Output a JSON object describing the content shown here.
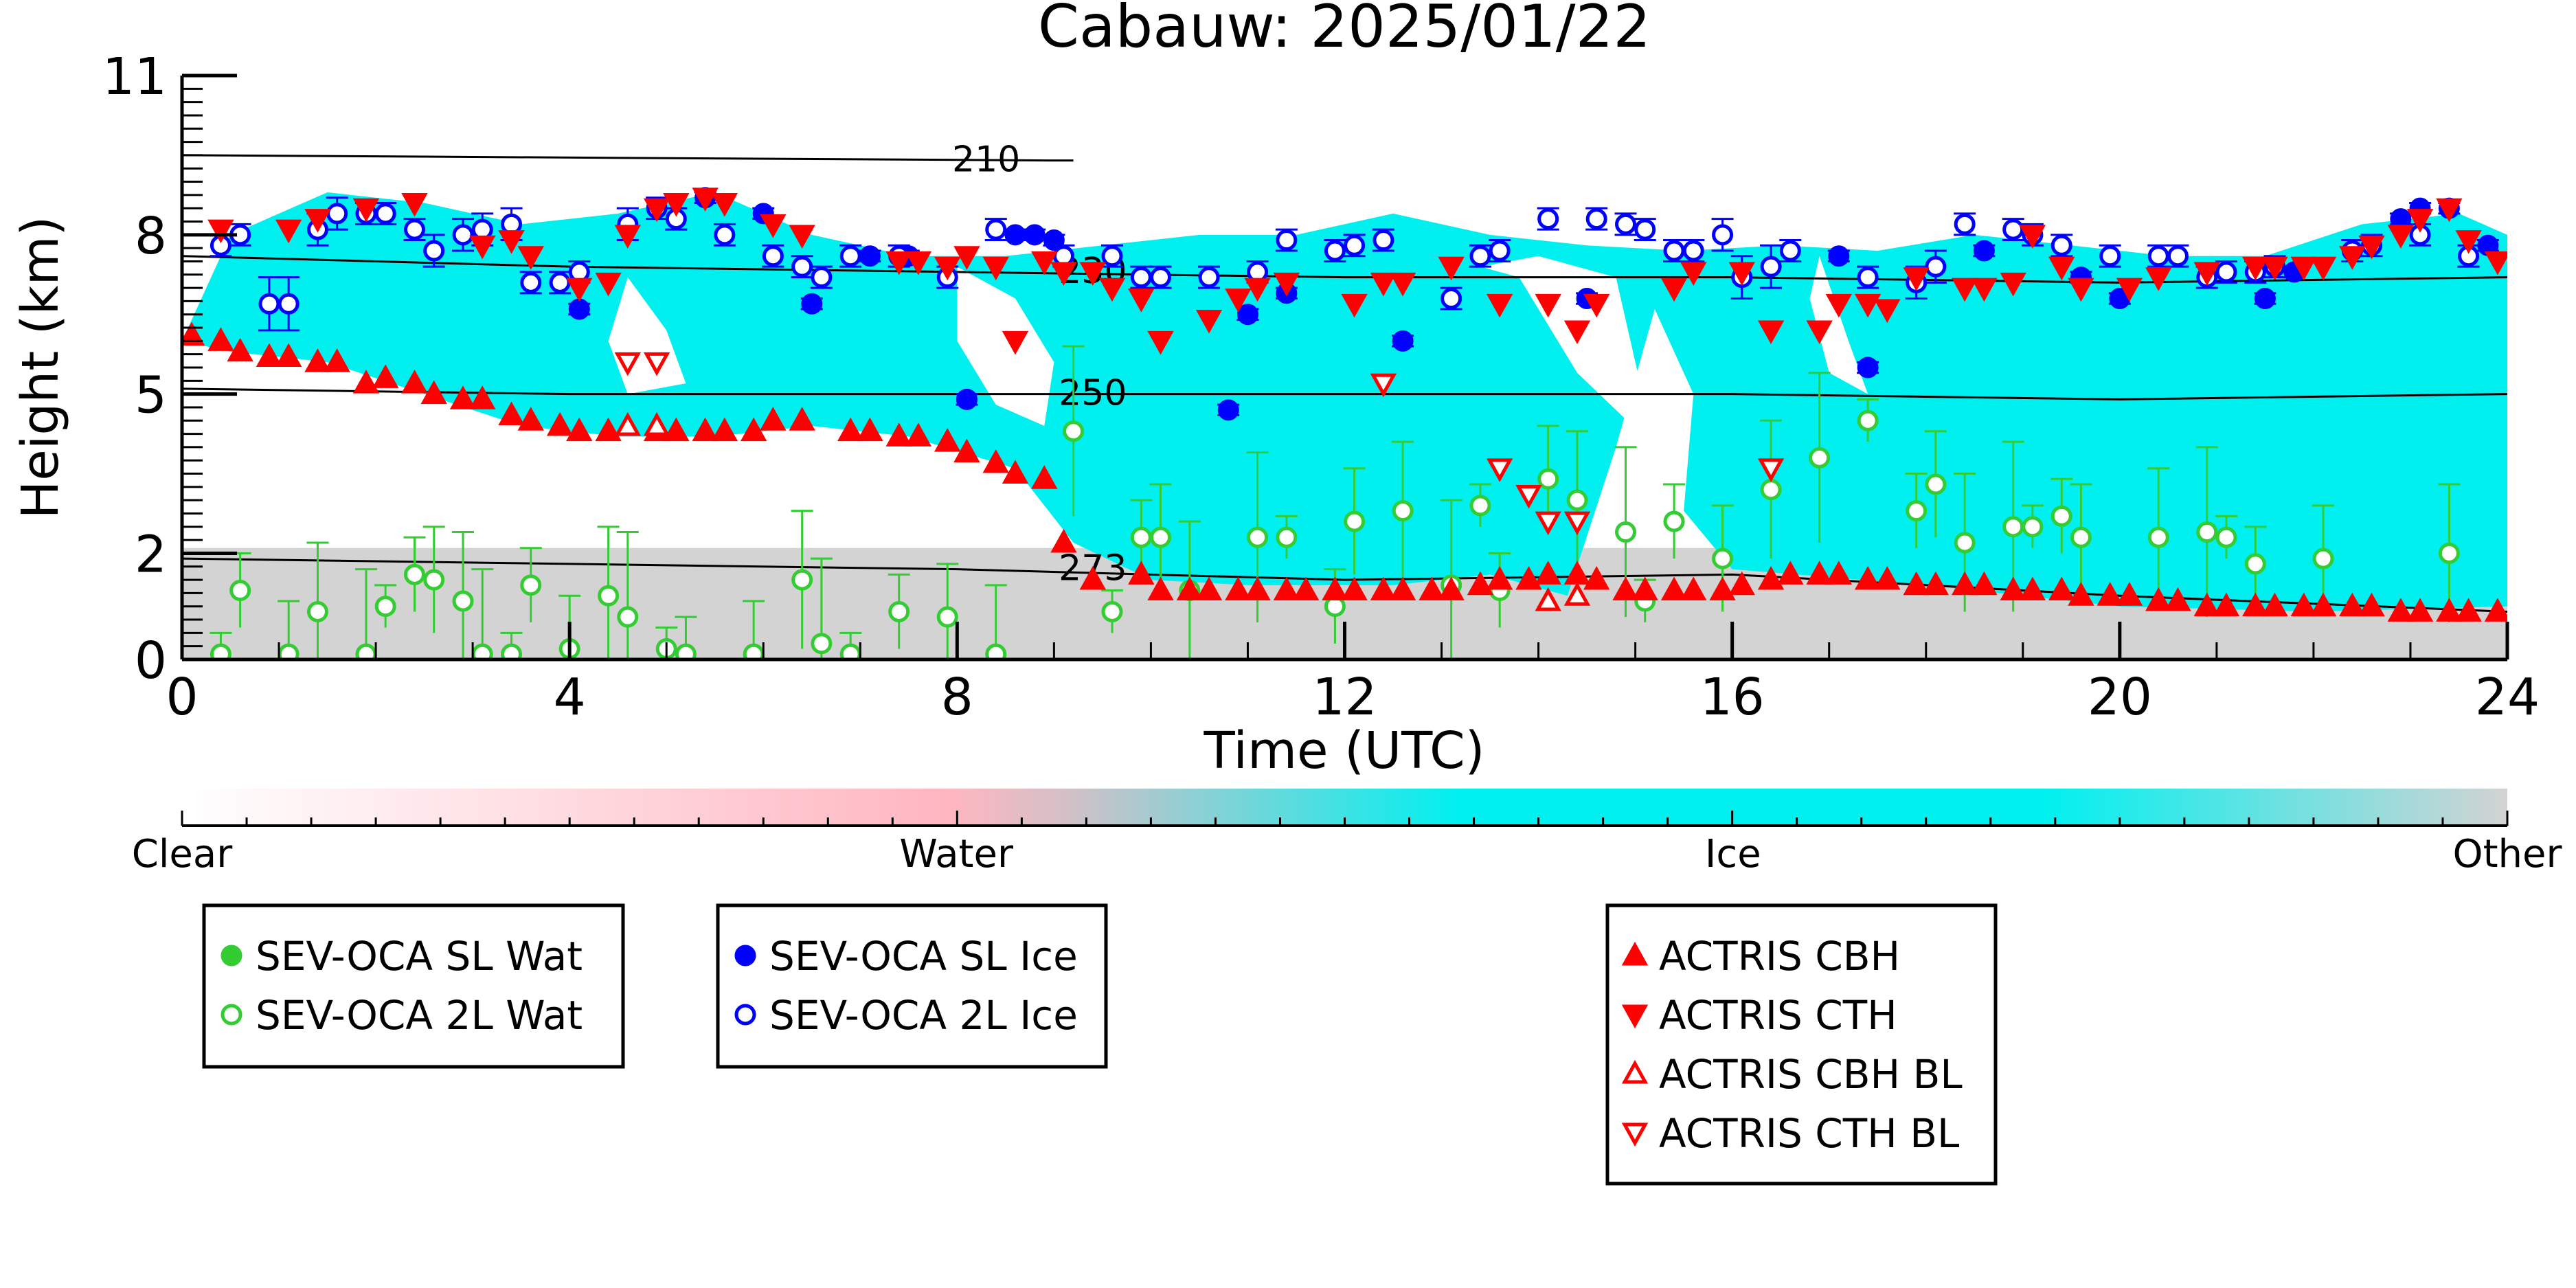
{
  "chart_data": {
    "type": "scatter",
    "title": "Cabauw: 2025/01/22",
    "xlabel": "Time (UTC)",
    "ylabel": "Height (km)",
    "xlim": [
      0,
      24
    ],
    "ylim": [
      0,
      11
    ],
    "x_ticks": [
      0,
      4,
      8,
      12,
      16,
      20,
      24
    ],
    "y_ticks": [
      0,
      2,
      5,
      8,
      11
    ],
    "colorbar": {
      "labels": [
        "Clear",
        "Water",
        "Ice",
        "Other"
      ],
      "colors": [
        "#ffffff",
        "#ffb6c1",
        "#00f0f0",
        "#d3d3d3"
      ]
    },
    "contours": [
      {
        "label": "210",
        "x": [
          0,
          9,
          9.2
        ],
        "y": [
          9.5,
          9.4,
          9.4
        ]
      },
      {
        "label": "230",
        "x": [
          0,
          4,
          8,
          12,
          16,
          20,
          24
        ],
        "y": [
          7.6,
          7.4,
          7.3,
          7.2,
          7.2,
          7.1,
          7.2
        ]
      },
      {
        "label": "250",
        "x": [
          0,
          4,
          8,
          12,
          16,
          20,
          24
        ],
        "y": [
          5.1,
          5.0,
          5.0,
          5.0,
          5.0,
          4.9,
          5.0
        ]
      },
      {
        "label": "273",
        "x": [
          0,
          4,
          8,
          12,
          16,
          20,
          24
        ],
        "y": [
          1.9,
          1.8,
          1.7,
          1.5,
          1.6,
          1.2,
          0.9
        ]
      }
    ],
    "series": [
      {
        "name": "SEV-OCA SL Wat",
        "marker": "circle-filled",
        "color": "#33cc33",
        "x": [],
        "y": []
      },
      {
        "name": "SEV-OCA 2L Wat",
        "marker": "circle-open",
        "color": "#33cc33",
        "x": [
          0.4,
          0.6,
          1.1,
          1.4,
          1.9,
          2.1,
          2.4,
          2.6,
          2.9,
          3.1,
          3.4,
          3.6,
          4.0,
          4.4,
          4.6,
          5.0,
          5.2,
          5.9,
          6.4,
          6.6,
          6.9,
          7.4,
          7.9,
          8.4,
          9.2,
          9.6,
          9.9,
          10.1,
          10.4,
          11.1,
          11.4,
          11.9,
          12.1,
          12.6,
          13.1,
          13.4,
          13.6,
          14.1,
          14.4,
          14.9,
          15.1,
          15.4,
          15.9,
          16.4,
          16.9,
          17.4,
          17.9,
          18.1,
          18.4,
          18.9,
          19.1,
          19.4,
          19.6,
          20.4,
          20.9,
          21.1,
          21.4,
          22.1,
          23.4
        ],
        "y": [
          0.1,
          1.3,
          0.1,
          0.9,
          0.1,
          1.0,
          1.6,
          1.5,
          1.1,
          0.1,
          0.1,
          1.4,
          0.2,
          1.2,
          0.8,
          0.2,
          0.1,
          0.1,
          1.5,
          0.3,
          0.1,
          0.9,
          0.8,
          0.1,
          4.3,
          0.9,
          2.3,
          2.3,
          1.3,
          2.3,
          2.3,
          1.0,
          2.6,
          2.8,
          1.4,
          2.9,
          1.3,
          3.4,
          3.0,
          2.4,
          1.1,
          2.6,
          1.9,
          3.2,
          3.8,
          4.5,
          2.8,
          3.3,
          2.2,
          2.5,
          2.5,
          2.7,
          2.3,
          2.3,
          2.4,
          2.3,
          1.8,
          1.9,
          2.0
        ]
      },
      {
        "name": "SEV-OCA SL Ice",
        "marker": "circle-filled",
        "color": "#0000ff",
        "x": [
          4.1,
          5.4,
          6.0,
          6.5,
          7.1,
          7.5,
          8.1,
          8.6,
          8.8,
          9.0,
          10.8,
          11.0,
          11.4,
          12.6,
          14.5,
          17.1,
          17.4,
          18.6,
          19.6,
          20.0,
          21.5,
          21.8,
          22.9,
          23.1,
          23.4,
          23.8
        ],
        "y": [
          6.6,
          8.7,
          8.4,
          6.7,
          7.6,
          7.6,
          4.9,
          8.0,
          8.0,
          7.9,
          4.7,
          6.5,
          6.9,
          6.0,
          6.8,
          7.6,
          5.5,
          7.7,
          7.2,
          6.8,
          6.8,
          7.3,
          8.3,
          8.5,
          8.5,
          7.8
        ],
        "err": [
          0.1,
          0.1,
          0.1,
          0.1,
          0.1,
          0.1,
          0.1,
          0.1,
          0.1,
          0.1,
          0.1,
          0.1,
          0.1,
          0.1,
          0.1,
          0.1,
          0.1,
          0.1,
          0.1,
          0.1,
          0.1,
          0.1,
          0.1,
          0.1,
          0.1,
          0.1
        ]
      },
      {
        "name": "SEV-OCA 2L Ice",
        "marker": "circle-open",
        "color": "#0000ff",
        "x": [
          0.4,
          0.6,
          0.9,
          1.1,
          1.4,
          1.6,
          1.9,
          2.1,
          2.4,
          2.6,
          2.9,
          3.1,
          3.4,
          3.6,
          3.9,
          4.1,
          4.6,
          4.9,
          5.1,
          5.6,
          6.1,
          6.4,
          6.6,
          6.9,
          7.4,
          7.9,
          8.4,
          9.1,
          9.6,
          9.9,
          10.1,
          10.6,
          11.1,
          11.4,
          11.9,
          12.1,
          12.4,
          13.1,
          13.4,
          13.6,
          14.1,
          14.6,
          14.9,
          15.1,
          15.4,
          15.6,
          15.9,
          16.1,
          16.4,
          16.6,
          17.4,
          17.9,
          18.1,
          18.4,
          18.9,
          19.1,
          19.4,
          19.9,
          20.4,
          20.6,
          20.9,
          21.1,
          21.4,
          21.6,
          22.4,
          22.6,
          23.1,
          23.6
        ],
        "y": [
          7.8,
          8.0,
          6.7,
          6.7,
          8.1,
          8.4,
          8.4,
          8.4,
          8.1,
          7.7,
          8.0,
          8.1,
          8.2,
          7.1,
          7.1,
          7.3,
          8.2,
          8.5,
          8.3,
          8.0,
          7.6,
          7.4,
          7.2,
          7.6,
          7.6,
          7.2,
          8.1,
          7.6,
          7.6,
          7.2,
          7.2,
          7.2,
          7.3,
          7.9,
          7.7,
          7.8,
          7.9,
          6.8,
          7.6,
          7.7,
          8.3,
          8.3,
          8.2,
          8.1,
          7.7,
          7.7,
          8.0,
          7.2,
          7.4,
          7.7,
          7.2,
          7.1,
          7.4,
          8.2,
          8.1,
          8.0,
          7.8,
          7.6,
          7.6,
          7.6,
          7.2,
          7.3,
          7.3,
          7.4,
          7.7,
          7.8,
          8.0,
          7.6
        ],
        "err": [
          0.2,
          0.2,
          0.5,
          0.5,
          0.3,
          0.3,
          0.2,
          0.2,
          0.2,
          0.3,
          0.3,
          0.3,
          0.3,
          0.2,
          0.2,
          0.2,
          0.3,
          0.2,
          0.2,
          0.2,
          0.2,
          0.2,
          0.2,
          0.2,
          0.2,
          0.2,
          0.2,
          0.2,
          0.2,
          0.2,
          0.2,
          0.2,
          0.2,
          0.2,
          0.2,
          0.2,
          0.2,
          0.2,
          0.2,
          0.2,
          0.2,
          0.2,
          0.2,
          0.2,
          0.2,
          0.2,
          0.3,
          0.4,
          0.4,
          0.2,
          0.2,
          0.3,
          0.3,
          0.2,
          0.2,
          0.2,
          0.2,
          0.2,
          0.2,
          0.2,
          0.2,
          0.2,
          0.2,
          0.2,
          0.2,
          0.2,
          0.2,
          0.2
        ]
      },
      {
        "name": "ACTRIS CBH",
        "marker": "triangle-up-filled",
        "color": "#ff0000",
        "x": [
          0.1,
          0.4,
          0.6,
          0.9,
          1.1,
          1.4,
          1.6,
          1.9,
          2.1,
          2.4,
          2.6,
          2.9,
          3.1,
          3.4,
          3.6,
          3.9,
          4.1,
          4.4,
          4.9,
          5.1,
          5.4,
          5.6,
          5.9,
          6.1,
          6.4,
          6.9,
          7.1,
          7.4,
          7.6,
          7.9,
          8.1,
          8.4,
          8.6,
          8.9,
          9.1,
          9.4,
          9.9,
          10.1,
          10.4,
          10.6,
          10.9,
          11.1,
          11.4,
          11.6,
          11.9,
          12.1,
          12.4,
          12.6,
          12.9,
          13.1,
          13.4,
          13.6,
          13.9,
          14.1,
          14.4,
          14.6,
          14.9,
          15.1,
          15.4,
          15.6,
          15.9,
          16.1,
          16.4,
          16.6,
          16.9,
          17.1,
          17.4,
          17.6,
          17.9,
          18.1,
          18.4,
          18.6,
          18.9,
          19.1,
          19.4,
          19.6,
          19.9,
          20.1,
          20.4,
          20.6,
          20.9,
          21.1,
          21.4,
          21.6,
          21.9,
          22.1,
          22.4,
          22.6,
          22.9,
          23.1,
          23.4,
          23.6,
          23.9
        ],
        "y": [
          6.1,
          6.0,
          5.8,
          5.7,
          5.7,
          5.6,
          5.6,
          5.2,
          5.3,
          5.2,
          5.0,
          4.9,
          4.9,
          4.6,
          4.5,
          4.4,
          4.3,
          4.3,
          4.3,
          4.3,
          4.3,
          4.3,
          4.3,
          4.5,
          4.5,
          4.3,
          4.3,
          4.2,
          4.2,
          4.1,
          3.9,
          3.7,
          3.5,
          3.4,
          2.2,
          1.5,
          1.6,
          1.3,
          1.3,
          1.3,
          1.3,
          1.3,
          1.3,
          1.3,
          1.3,
          1.3,
          1.3,
          1.3,
          1.3,
          1.3,
          1.4,
          1.5,
          1.5,
          1.6,
          1.6,
          1.5,
          1.3,
          1.3,
          1.3,
          1.3,
          1.3,
          1.4,
          1.5,
          1.6,
          1.6,
          1.6,
          1.5,
          1.5,
          1.4,
          1.4,
          1.4,
          1.4,
          1.3,
          1.3,
          1.3,
          1.2,
          1.2,
          1.2,
          1.1,
          1.1,
          1.0,
          1.0,
          1.0,
          1.0,
          1.0,
          1.0,
          1.0,
          1.0,
          0.9,
          0.9,
          0.9,
          0.9,
          0.9
        ]
      },
      {
        "name": "ACTRIS CTH",
        "marker": "triangle-down-filled",
        "color": "#ff0000",
        "x": [
          0.4,
          1.1,
          1.4,
          1.9,
          2.4,
          3.1,
          3.4,
          3.6,
          4.1,
          4.4,
          4.6,
          4.9,
          5.1,
          5.4,
          5.6,
          6.1,
          6.4,
          7.4,
          7.6,
          7.9,
          8.1,
          8.4,
          8.6,
          8.9,
          9.1,
          9.4,
          9.6,
          9.9,
          10.1,
          10.6,
          10.9,
          11.1,
          11.4,
          12.1,
          12.4,
          12.6,
          13.1,
          13.6,
          14.1,
          14.4,
          14.6,
          15.4,
          15.6,
          16.1,
          16.4,
          16.9,
          17.1,
          17.4,
          17.6,
          17.9,
          18.4,
          18.6,
          18.9,
          19.1,
          19.4,
          19.6,
          20.1,
          20.4,
          20.9,
          21.4,
          21.6,
          21.9,
          22.1,
          22.4,
          22.6,
          22.9,
          23.1,
          23.4,
          23.6,
          23.9
        ],
        "y": [
          8.1,
          8.1,
          8.3,
          8.5,
          8.6,
          7.8,
          7.9,
          7.6,
          7.0,
          7.1,
          8.0,
          8.5,
          8.6,
          8.7,
          8.6,
          8.2,
          8.0,
          7.5,
          7.5,
          7.4,
          7.6,
          7.4,
          6.0,
          7.5,
          7.3,
          7.3,
          7.0,
          6.8,
          6.0,
          6.4,
          6.8,
          7.0,
          7.1,
          6.7,
          7.1,
          7.1,
          7.4,
          6.7,
          6.7,
          6.2,
          6.7,
          7.0,
          7.3,
          7.3,
          6.2,
          6.2,
          6.7,
          6.7,
          6.6,
          7.2,
          7.0,
          7.0,
          7.1,
          8.0,
          7.4,
          7.0,
          7.0,
          7.2,
          7.3,
          7.4,
          7.4,
          7.4,
          7.4,
          7.6,
          7.8,
          8.0,
          8.3,
          8.5,
          7.9,
          7.5
        ],
        "marker_note": ""
      },
      {
        "name": "ACTRIS CBH BL",
        "marker": "triangle-up-open",
        "color": "#ff0000",
        "x": [
          4.6,
          4.9,
          14.1,
          14.4
        ],
        "y": [
          4.4,
          4.4,
          1.1,
          1.2
        ]
      },
      {
        "name": "ACTRIS CTH BL",
        "marker": "triangle-down-open",
        "color": "#ff0000",
        "x": [
          4.6,
          4.9,
          12.4,
          13.6,
          13.9,
          14.1,
          14.4,
          16.4
        ],
        "y": [
          5.6,
          5.6,
          5.2,
          3.6,
          3.1,
          2.6,
          2.6,
          3.6
        ]
      }
    ],
    "legend_groups": [
      [
        "SEV-OCA SL Wat",
        "SEV-OCA 2L Wat"
      ],
      [
        "SEV-OCA SL Ice",
        "SEV-OCA 2L Ice"
      ],
      [
        "ACTRIS CBH",
        "ACTRIS CTH",
        "ACTRIS CBH BL",
        "ACTRIS CTH BL"
      ]
    ],
    "grid": false
  }
}
